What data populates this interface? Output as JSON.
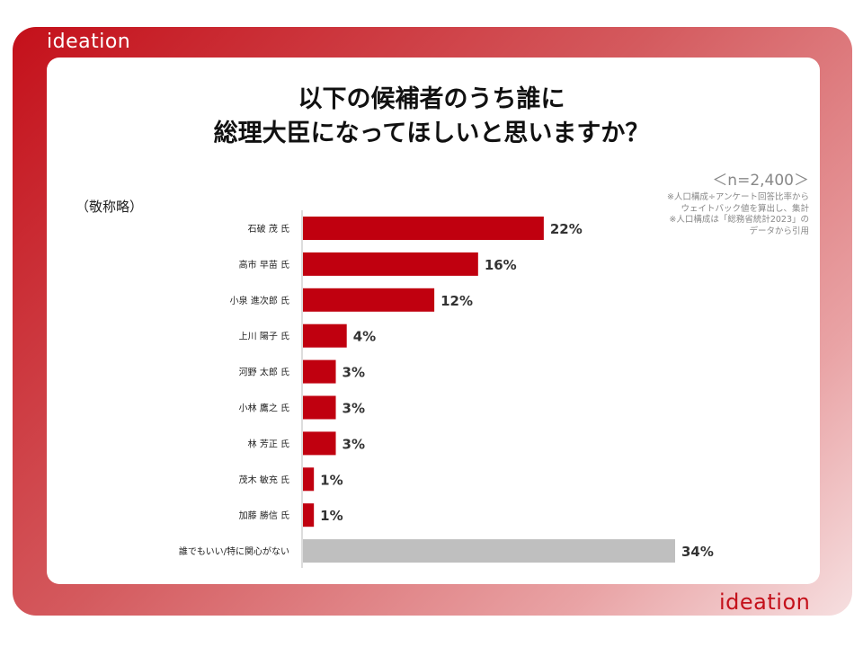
{
  "brand": {
    "logo_text": "ideation"
  },
  "title_line1": "以下の候補者のうち誰に",
  "title_line2": "総理大臣になってほしいと思いますか？",
  "honorific_note": "（敬称略）",
  "sample_size": "＜n=2,400＞",
  "weight_note": [
    "※人口構成÷アンケート回答比率から",
    "ウェイトバック値を算出し、集計",
    "※人口構成は「総務省統計2023」の",
    "データから引用"
  ],
  "chart_data": {
    "type": "bar",
    "orientation": "horizontal",
    "categories": [
      "石破 茂 氏",
      "高市 早苗 氏",
      "小泉 進次郎 氏",
      "上川 陽子 氏",
      "河野 太郎 氏",
      "小林 鷹之 氏",
      "林 芳正 氏",
      "茂木 敏充 氏",
      "加藤 勝信 氏",
      "誰でもいい/特に関心がない"
    ],
    "values": [
      22,
      16,
      12,
      4,
      3,
      3,
      3,
      1,
      1,
      34
    ],
    "value_labels": [
      "22%",
      "16%",
      "12%",
      "4%",
      "3%",
      "3%",
      "3%",
      "1%",
      "1%",
      "34%"
    ],
    "unit": "%",
    "xlim": [
      0,
      34
    ],
    "grid": false,
    "colors": {
      "candidate": "#c0000f",
      "no_preference": "#bfbfbf"
    }
  }
}
